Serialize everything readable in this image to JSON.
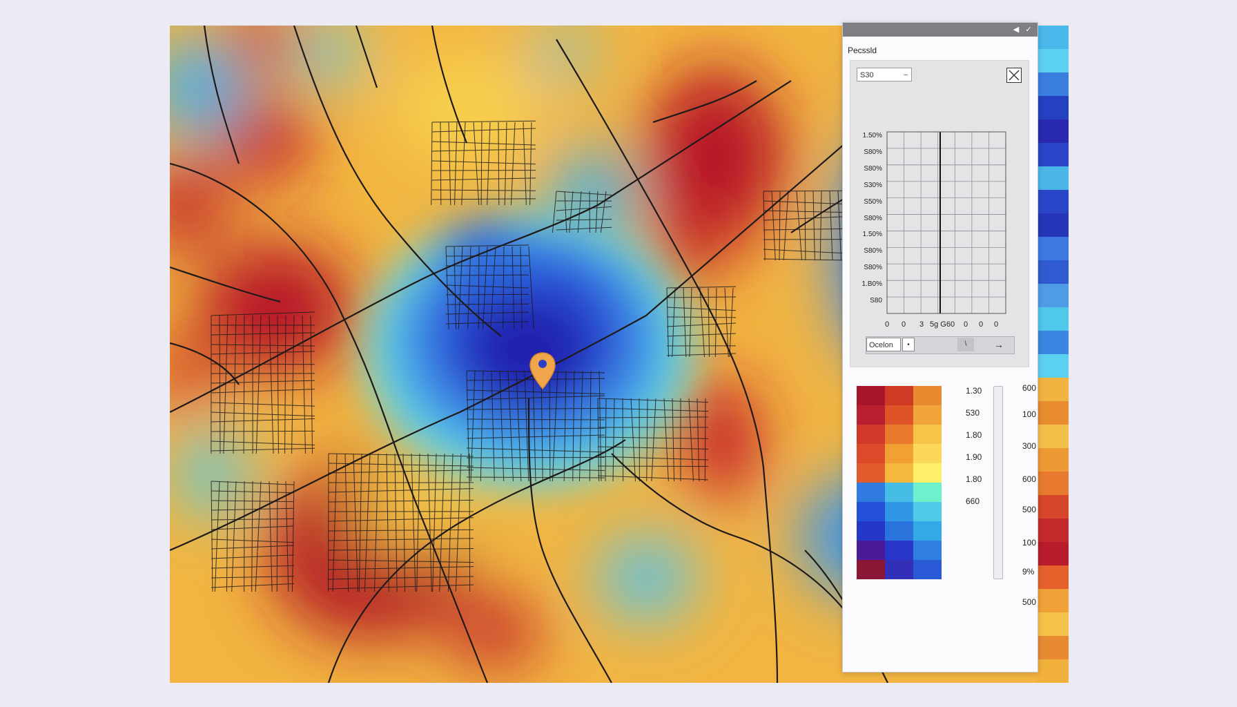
{
  "panel": {
    "title": "Pecssld",
    "select_value": "S30",
    "chart": {
      "y_labels": [
        "1.50%",
        "S80%",
        "S80%",
        "S30%",
        "S50%",
        "S80%",
        "1.50%",
        "S80%",
        "S80%",
        "1.B0%",
        "S80"
      ],
      "x_labels": [
        "0",
        "0",
        "3",
        "5g G60",
        "0",
        "0",
        "0"
      ]
    },
    "controls": {
      "option_label": "Ocelon",
      "small_label": "•",
      "thumb_label": "\\",
      "arrow_label": "→"
    },
    "legend": {
      "inner_labels": [
        "1.30",
        "530",
        "1.80",
        "1.90",
        "1.80",
        "660"
      ],
      "outer_labels": [
        "600",
        "100",
        "300",
        "600",
        "500",
        "100",
        "9%",
        "500"
      ],
      "colors": [
        [
          "#a8162c",
          "#cf3a25",
          "#ea8a30"
        ],
        [
          "#b81f30",
          "#dd5226",
          "#f1a43a"
        ],
        [
          "#d2392a",
          "#ea7b2c",
          "#f7c44a"
        ],
        [
          "#dc4a2a",
          "#f2a033",
          "#fbd75a"
        ],
        [
          "#e05d2b",
          "#f5b83c",
          "#fdef6a"
        ],
        [
          "#2f7be0",
          "#45bde6",
          "#6ef0cc"
        ],
        [
          "#2550d8",
          "#3196e4",
          "#4fcbe8"
        ],
        [
          "#2438c8",
          "#2a72dc",
          "#35a8e6"
        ],
        [
          "#4a1a98",
          "#2a36c9",
          "#2f7fe0"
        ],
        [
          "#8a1735",
          "#3330b8",
          "#2a5ad6"
        ]
      ]
    }
  },
  "map": {
    "marker": "location-pin-icon",
    "pin_color": "#f0a64a"
  },
  "strip_colors": [
    "#4ab8ea",
    "#5bd0f0",
    "#3a7ee0",
    "#2540c0",
    "#2a2ab0",
    "#2b44c8",
    "#4ab6e8",
    "#2a46c8",
    "#2736b8",
    "#3b78e0",
    "#2f5ad0",
    "#4f9be6",
    "#4fc8ec",
    "#3a86e2",
    "#5cd0f0",
    "#f2b440",
    "#e98c30",
    "#f3c04a",
    "#ee9a34",
    "#e77a2e",
    "#d5462a",
    "#c42a2c",
    "#b81c2c",
    "#e6602c",
    "#f0a238",
    "#f5c24a",
    "#e88a32",
    "#f2b03c"
  ]
}
